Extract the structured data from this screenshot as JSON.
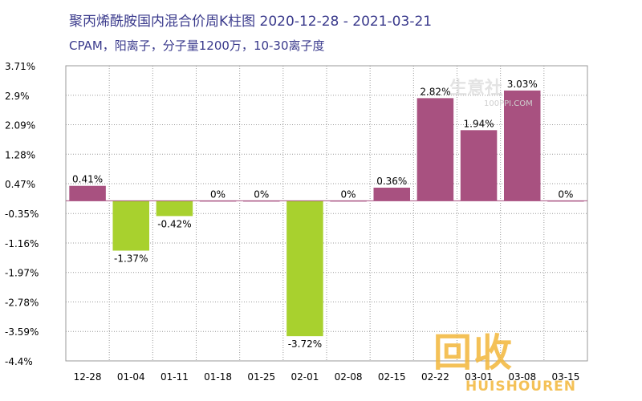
{
  "title": "聚丙烯酰胺国内混合价周K柱图 2020-12-28 - 2021-03-21",
  "subtitle": "CPAM，阳离子，分子量1200万，10-30离子度",
  "watermarks": {
    "top_text": "生意社",
    "top_sub": "100PPI.COM",
    "bottom_text": "回收",
    "bottom_sub": "HUISHOUREN"
  },
  "colors": {
    "positive": "#a85180",
    "negative": "#a8d12e",
    "grid": "#999999",
    "text": "#000000",
    "title": "#3a3a8c"
  },
  "chart_data": {
    "type": "bar",
    "title": "聚丙烯酰胺国内混合价周K柱图 2020-12-28 - 2021-03-21",
    "categories": [
      "12-28",
      "01-04",
      "01-11",
      "01-18",
      "01-25",
      "02-01",
      "02-08",
      "02-15",
      "02-22",
      "03-01",
      "03-08",
      "03-15"
    ],
    "values": [
      0.41,
      -1.37,
      -0.42,
      0,
      0,
      -3.72,
      0,
      0.36,
      2.82,
      1.94,
      3.03,
      0
    ],
    "value_labels": [
      "0.41%",
      "-1.37%",
      "-0.42%",
      "0%",
      "0%",
      "-3.72%",
      "0%",
      "0.36%",
      "2.82%",
      "1.94%",
      "3.03%",
      "0%"
    ],
    "yticks": [
      3.71,
      2.9,
      2.09,
      1.28,
      0.47,
      -0.35,
      -1.16,
      -1.97,
      -2.78,
      -3.59,
      -4.4
    ],
    "ytick_labels": [
      "3.71%",
      "2.9%",
      "2.09%",
      "1.28%",
      "0.47%",
      "-0.35%",
      "-1.16%",
      "-1.97%",
      "-2.78%",
      "-3.59%",
      "-4.4%"
    ],
    "ylim": [
      -4.4,
      3.71
    ],
    "grid": true
  }
}
